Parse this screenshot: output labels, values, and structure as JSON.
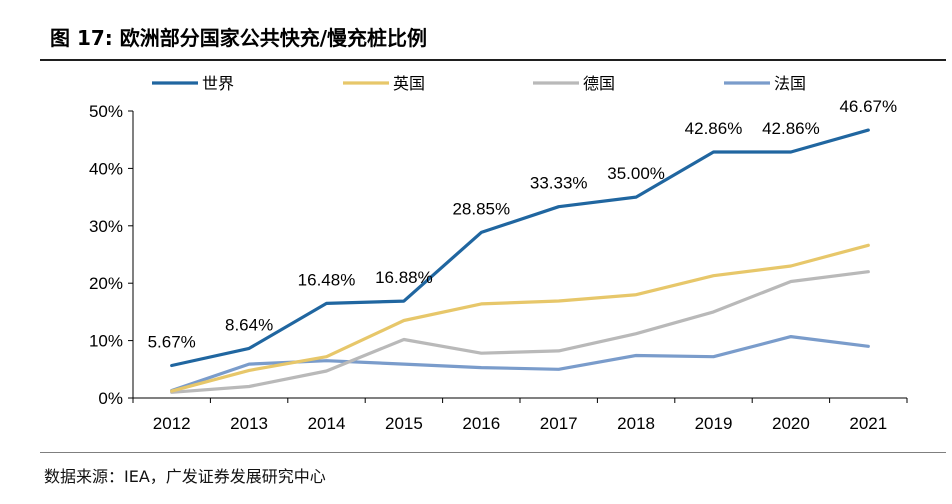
{
  "header": {
    "title": "图 17: 欧洲部分国家公共快充/慢充桩比例"
  },
  "footer": {
    "source": "数据来源：IEA，广发证券发展研究中心"
  },
  "chart_data": {
    "type": "line",
    "title": "",
    "xlabel": "",
    "ylabel": "",
    "categories": [
      "2012",
      "2013",
      "2014",
      "2015",
      "2016",
      "2017",
      "2018",
      "2019",
      "2020",
      "2021"
    ],
    "ylim": [
      0,
      50
    ],
    "yticks": [
      "0%",
      "10%",
      "20%",
      "30%",
      "40%",
      "50%"
    ],
    "grid": false,
    "legend": "top",
    "series": [
      {
        "name": "世界",
        "color": "#2066a0",
        "values": [
          5.67,
          8.64,
          16.48,
          16.88,
          28.85,
          33.33,
          35.0,
          42.86,
          42.86,
          46.67
        ],
        "labels": [
          "5.67%",
          "8.64%",
          "16.48%",
          "16.88%",
          "28.85%",
          "33.33%",
          "35.00%",
          "42.86%",
          "42.86%",
          "46.67%"
        ]
      },
      {
        "name": "英国",
        "color": "#e7c76a",
        "values": [
          1.2,
          4.8,
          7.2,
          13.5,
          16.4,
          16.9,
          18.0,
          21.3,
          23.0,
          26.6
        ]
      },
      {
        "name": "德国",
        "color": "#b9b9b9",
        "values": [
          1.0,
          2.0,
          4.7,
          10.2,
          7.8,
          8.2,
          11.2,
          15.0,
          20.3,
          22.0
        ]
      },
      {
        "name": "法国",
        "color": "#7a9ccb",
        "values": [
          1.3,
          5.9,
          6.5,
          5.9,
          5.3,
          5.0,
          7.4,
          7.2,
          10.7,
          9.0
        ]
      }
    ]
  }
}
